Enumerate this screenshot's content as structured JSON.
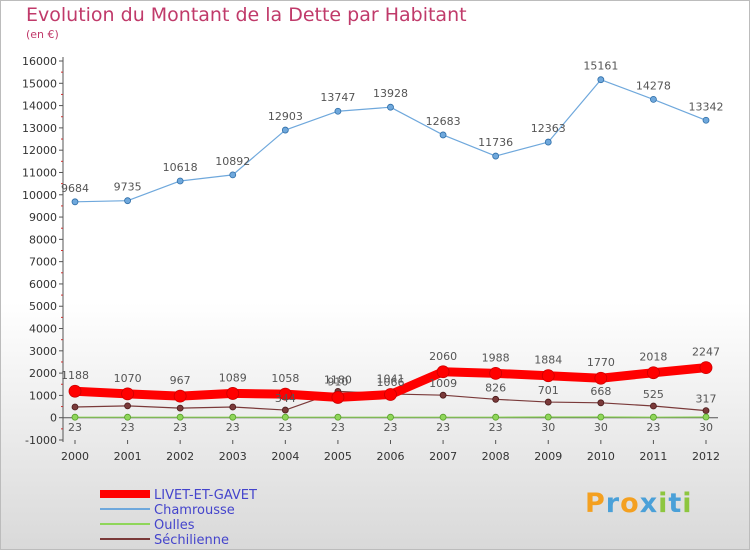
{
  "chart_data": {
    "type": "line",
    "title": "Evolution du Montant de la Dette par Habitant",
    "subtitle": "(en €)",
    "categories": [
      "2000",
      "2001",
      "2002",
      "2003",
      "2004",
      "2005",
      "2006",
      "2007",
      "2008",
      "2009",
      "2010",
      "2011",
      "2012"
    ],
    "yticks": [
      "16000",
      "15000",
      "14000",
      "13000",
      "12000",
      "11000",
      "10000",
      "9000",
      "8000",
      "7000",
      "6000",
      "5000",
      "4000",
      "3000",
      "2000",
      "1000",
      "0",
      "-1000"
    ],
    "ylim": [
      -1000,
      16000
    ],
    "grid": false,
    "legend_position": "bottom-left",
    "series": [
      {
        "name": "LIVET-ET-GAVET",
        "color": "#ff0000",
        "values": [
          1188,
          1070,
          967,
          1089,
          1058,
          910,
          1041,
          2060,
          1988,
          1884,
          1770,
          2018,
          2247
        ],
        "labels": [
          "1188",
          "1070",
          "967",
          "1089",
          "1058",
          "910",
          "1041",
          "2060",
          "1988",
          "1884",
          "1770",
          "2018",
          "2247"
        ]
      },
      {
        "name": "Chamrousse",
        "color": "#6fa8dc",
        "values": [
          9684,
          9735,
          10618,
          10892,
          12903,
          13747,
          13928,
          12683,
          11736,
          12363,
          15161,
          14278,
          13342
        ],
        "labels": [
          "9684",
          "9735",
          "10618",
          "10892",
          "12903",
          "13747",
          "13928",
          "12683",
          "11736",
          "12363",
          "15161",
          "14278",
          "13342"
        ]
      },
      {
        "name": "Oulles",
        "color": "#8fd65a",
        "values": [
          23,
          23,
          23,
          23,
          23,
          23,
          23,
          23,
          23,
          30,
          30,
          23,
          30
        ],
        "labels": [
          "23",
          "23",
          "23",
          "23",
          "23",
          "23",
          "23",
          "23",
          "23",
          "30",
          "30",
          "23",
          "30"
        ]
      },
      {
        "name": "Séchilienne",
        "color": "#7a3a3a",
        "values": [
          480,
          530,
          430,
          480,
          344,
          1180,
          1066,
          1009,
          826,
          701,
          668,
          525,
          317
        ],
        "labels": [
          "",
          "",
          "",
          "",
          "344",
          "1180",
          "1066",
          "1009",
          "826",
          "701",
          "668",
          "525",
          "317"
        ]
      }
    ]
  },
  "logo": {
    "letters": [
      "P",
      "r",
      "o",
      "x",
      "i",
      "t",
      "i"
    ],
    "colors": [
      "#f4a020",
      "#4aa0d8",
      "#f4a020",
      "#4aa0d8",
      "#8dc63f",
      "#4aa0d8",
      "#8dc63f"
    ]
  }
}
